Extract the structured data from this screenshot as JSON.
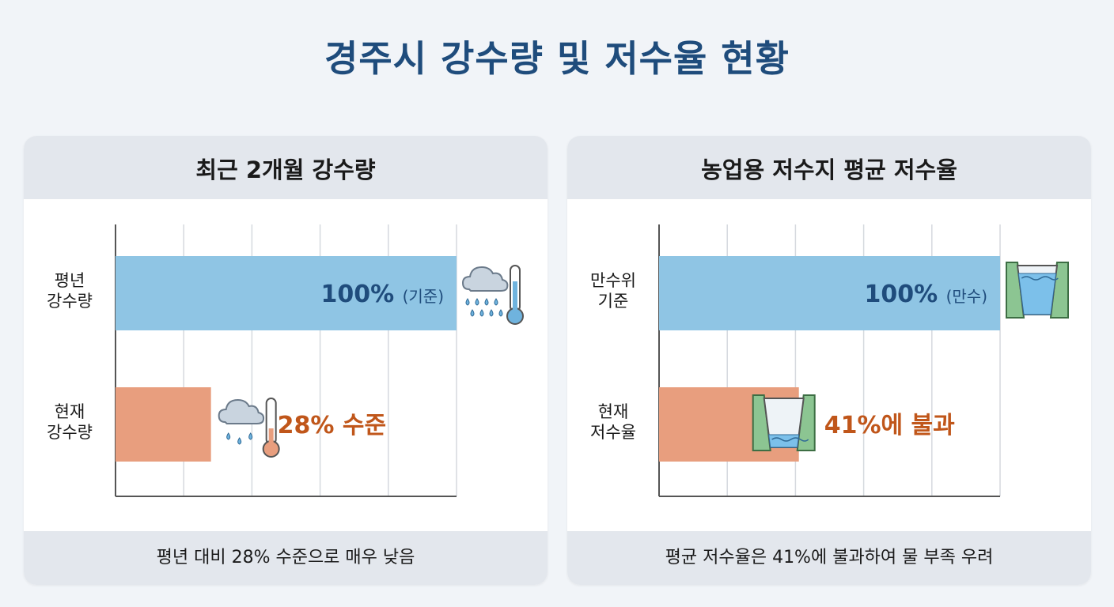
{
  "title": "경주시 강수량 및 저수율 현황",
  "chart_data": [
    {
      "type": "bar",
      "orientation": "horizontal",
      "title": "최근 2개월 강수량",
      "categories": [
        [
          "평년",
          "강수량"
        ],
        [
          "현재",
          "강수량"
        ]
      ],
      "values": [
        100,
        28
      ],
      "xlim": [
        0,
        100
      ],
      "grid": true,
      "value_labels": [
        {
          "main": "100%",
          "sub": "(기준)"
        },
        {
          "main": "28% 수준",
          "sub": ""
        }
      ],
      "icons": [
        "rain-cloud-thermometer-icon",
        "light-rain-cloud-thermometer-icon"
      ],
      "footer": "평년 대비 28% 수준으로 매우 낮음"
    },
    {
      "type": "bar",
      "orientation": "horizontal",
      "title": "농업용 저수지 평균 저수율",
      "categories": [
        [
          "만수위",
          "기준"
        ],
        [
          "현재",
          "저수율"
        ]
      ],
      "values": [
        100,
        41
      ],
      "xlim": [
        0,
        100
      ],
      "grid": true,
      "value_labels": [
        {
          "main": "100%",
          "sub": "(만수)"
        },
        {
          "main": "41%에 불과",
          "sub": ""
        }
      ],
      "icons": [
        "full-reservoir-icon",
        "low-reservoir-icon"
      ],
      "footer": "평균 저수율은 41%에 불과하여 물 부족 우려"
    }
  ],
  "colors": {
    "reference_bar": "#8fc5e4",
    "current_bar": "#e89e7e",
    "reference_text": "#1f4c7c",
    "current_text": "#c0561a",
    "grid": "#d5d9de",
    "axis": "#555555"
  }
}
